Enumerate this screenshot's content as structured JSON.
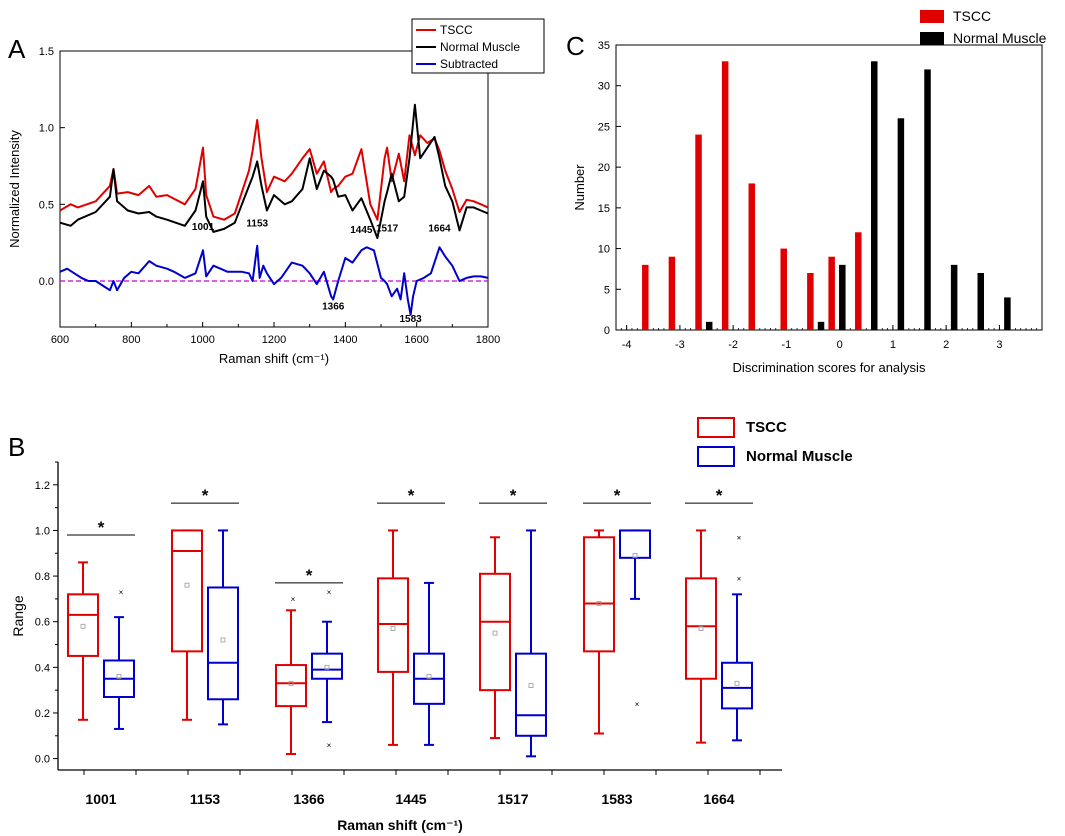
{
  "colors": {
    "tscc": "#e00000",
    "normal": "#000000",
    "subtracted": "#0000cc",
    "baseline": "#cc00cc",
    "box_normal": "#0000cc"
  },
  "chart_data": [
    {
      "panel": "A",
      "type": "line",
      "panel_label": "A",
      "xlabel": "Raman shift (cm⁻¹)",
      "ylabel": "Normalized Intensity",
      "xlim": [
        600,
        1800
      ],
      "ylim": [
        -0.3,
        1.5
      ],
      "xticks": [
        600,
        800,
        1000,
        1200,
        1400,
        1600,
        1800
      ],
      "yticks": [
        0.0,
        0.5,
        1.0,
        1.5
      ],
      "ytick_labels": [
        "0.0",
        "0.5",
        "1.0",
        "1.5"
      ],
      "legend": [
        "TSCC",
        "Normal Muscle",
        "Subtracted"
      ],
      "legend_position": "top-right",
      "annotations": [
        {
          "text": "1001",
          "x": 1001,
          "y": 0.36
        },
        {
          "text": "1153",
          "x": 1153,
          "y": 0.38
        },
        {
          "text": "1445",
          "x": 1445,
          "y": 0.34
        },
        {
          "text": "1517",
          "x": 1517,
          "y": 0.35
        },
        {
          "text": "1664",
          "x": 1664,
          "y": 0.35
        },
        {
          "text": "1366",
          "x": 1366,
          "y": -0.16
        },
        {
          "text": "1583",
          "x": 1583,
          "y": -0.24
        }
      ],
      "series": [
        {
          "name": "TSCC",
          "x": [
            600,
            630,
            650,
            700,
            740,
            750,
            760,
            790,
            820,
            850,
            870,
            900,
            950,
            980,
            1001,
            1010,
            1030,
            1060,
            1090,
            1110,
            1130,
            1140,
            1153,
            1165,
            1180,
            1200,
            1230,
            1250,
            1280,
            1300,
            1320,
            1340,
            1360,
            1366,
            1380,
            1400,
            1420,
            1445,
            1470,
            1490,
            1510,
            1517,
            1530,
            1550,
            1565,
            1580,
            1595,
            1610,
            1630,
            1650,
            1664,
            1680,
            1700,
            1720,
            1740,
            1760,
            1780,
            1800
          ],
          "y": [
            0.46,
            0.5,
            0.48,
            0.52,
            0.62,
            0.73,
            0.57,
            0.58,
            0.56,
            0.62,
            0.55,
            0.56,
            0.5,
            0.6,
            0.87,
            0.56,
            0.42,
            0.4,
            0.44,
            0.58,
            0.72,
            0.85,
            1.05,
            0.8,
            0.58,
            0.68,
            0.65,
            0.7,
            0.8,
            0.86,
            0.7,
            0.78,
            0.58,
            0.6,
            0.62,
            0.68,
            0.7,
            0.86,
            0.5,
            0.4,
            0.8,
            0.87,
            0.65,
            0.83,
            0.65,
            0.95,
            0.82,
            0.95,
            0.9,
            0.93,
            0.85,
            0.72,
            0.6,
            0.45,
            0.53,
            0.52,
            0.5,
            0.48
          ]
        },
        {
          "name": "Normal Muscle",
          "x": [
            600,
            630,
            650,
            700,
            740,
            750,
            760,
            790,
            820,
            850,
            870,
            900,
            950,
            980,
            1001,
            1010,
            1030,
            1060,
            1090,
            1110,
            1130,
            1140,
            1153,
            1165,
            1180,
            1200,
            1230,
            1250,
            1280,
            1300,
            1320,
            1340,
            1360,
            1366,
            1380,
            1400,
            1420,
            1445,
            1470,
            1490,
            1510,
            1517,
            1530,
            1550,
            1565,
            1580,
            1595,
            1610,
            1630,
            1650,
            1664,
            1680,
            1700,
            1720,
            1740,
            1760,
            1780,
            1800
          ],
          "y": [
            0.38,
            0.36,
            0.4,
            0.45,
            0.55,
            0.73,
            0.52,
            0.46,
            0.44,
            0.45,
            0.42,
            0.4,
            0.36,
            0.46,
            0.65,
            0.42,
            0.32,
            0.34,
            0.38,
            0.5,
            0.62,
            0.68,
            0.78,
            0.62,
            0.46,
            0.56,
            0.5,
            0.52,
            0.6,
            0.8,
            0.6,
            0.72,
            0.68,
            0.66,
            0.55,
            0.56,
            0.46,
            0.54,
            0.4,
            0.28,
            0.52,
            0.58,
            0.7,
            0.52,
            0.55,
            0.8,
            1.15,
            0.8,
            0.87,
            0.94,
            0.8,
            0.62,
            0.52,
            0.33,
            0.48,
            0.48,
            0.46,
            0.44
          ]
        },
        {
          "name": "Subtracted",
          "x": [
            600,
            620,
            640,
            660,
            680,
            700,
            720,
            740,
            750,
            760,
            780,
            800,
            820,
            850,
            870,
            900,
            920,
            950,
            980,
            1001,
            1010,
            1030,
            1050,
            1070,
            1090,
            1110,
            1130,
            1140,
            1153,
            1160,
            1170,
            1180,
            1200,
            1220,
            1250,
            1280,
            1300,
            1320,
            1340,
            1360,
            1366,
            1380,
            1400,
            1420,
            1445,
            1460,
            1480,
            1500,
            1510,
            1517,
            1530,
            1545,
            1555,
            1565,
            1575,
            1583,
            1590,
            1600,
            1620,
            1640,
            1664,
            1680,
            1700,
            1720,
            1740,
            1760,
            1780,
            1800
          ],
          "y": [
            0.06,
            0.08,
            0.05,
            0.02,
            0.0,
            0.0,
            -0.03,
            -0.06,
            0.0,
            -0.06,
            0.02,
            0.06,
            0.05,
            0.13,
            0.1,
            0.08,
            0.06,
            0.02,
            0.05,
            0.2,
            0.03,
            0.1,
            0.08,
            0.06,
            0.06,
            0.06,
            0.05,
            0.0,
            0.23,
            0.02,
            0.1,
            0.05,
            -0.02,
            0.02,
            0.12,
            0.1,
            0.05,
            -0.02,
            0.06,
            -0.1,
            -0.12,
            0.0,
            0.15,
            0.12,
            0.2,
            0.22,
            0.2,
            0.02,
            0.0,
            -0.02,
            -0.1,
            -0.05,
            -0.12,
            0.05,
            -0.12,
            -0.22,
            -0.1,
            0.0,
            0.02,
            0.05,
            0.22,
            0.16,
            0.1,
            0.0,
            0.02,
            0.03,
            0.03,
            0.02
          ]
        }
      ]
    },
    {
      "panel": "C",
      "type": "bar",
      "panel_label": "C",
      "xlabel": "Discrimination scores for analysis",
      "ylabel": "Number",
      "xlim": [
        -4.2,
        3.8
      ],
      "ylim": [
        0,
        35
      ],
      "xticks": [
        -4,
        -3,
        -2,
        -1,
        0,
        1,
        2,
        3
      ],
      "yticks": [
        0,
        5,
        10,
        15,
        20,
        25,
        30,
        35
      ],
      "legend": [
        "TSCC",
        "Normal Muscle"
      ],
      "legend_position": "top-right",
      "series": [
        {
          "name": "TSCC",
          "x": [
            -3.65,
            -3.15,
            -2.65,
            -2.15,
            -1.65,
            -1.05,
            -0.55,
            -0.15,
            0.35
          ],
          "values": [
            8,
            9,
            24,
            33,
            18,
            10,
            7,
            9,
            12
          ]
        },
        {
          "name": "Normal Muscle",
          "x": [
            -2.45,
            -0.35,
            0.05,
            0.65,
            1.15,
            1.65,
            2.15,
            2.65,
            3.15
          ],
          "values": [
            1,
            1,
            8,
            33,
            26,
            32,
            8,
            7,
            4
          ]
        }
      ]
    },
    {
      "panel": "B",
      "type": "box",
      "panel_label": "B",
      "xlabel": "Raman shift (cm⁻¹)",
      "ylabel": "Range",
      "ylim": [
        -0.05,
        1.3
      ],
      "yticks": [
        0.0,
        0.2,
        0.4,
        0.6,
        0.8,
        1.0,
        1.2
      ],
      "categories": [
        "1001",
        "1153",
        "1366",
        "1445",
        "1517",
        "1583",
        "1664"
      ],
      "legend": [
        "TSCC",
        "Normal  Muscle"
      ],
      "legend_position": "top-right",
      "significance_marker": "*",
      "series": [
        {
          "name": "TSCC",
          "boxes": [
            {
              "min": 0.17,
              "q1": 0.45,
              "median": 0.63,
              "q3": 0.72,
              "max": 0.86,
              "mean": 0.58,
              "outliers": []
            },
            {
              "min": 0.17,
              "q1": 0.47,
              "median": 0.91,
              "q3": 1.0,
              "max": 1.0,
              "mean": 0.76,
              "outliers": []
            },
            {
              "min": 0.02,
              "q1": 0.23,
              "median": 0.33,
              "q3": 0.41,
              "max": 0.65,
              "mean": 0.33,
              "outliers": [
                0.7
              ]
            },
            {
              "min": 0.06,
              "q1": 0.38,
              "median": 0.59,
              "q3": 0.79,
              "max": 1.0,
              "mean": 0.57,
              "outliers": []
            },
            {
              "min": 0.09,
              "q1": 0.3,
              "median": 0.6,
              "q3": 0.81,
              "max": 0.97,
              "mean": 0.55,
              "outliers": []
            },
            {
              "min": 0.11,
              "q1": 0.47,
              "median": 0.68,
              "q3": 0.97,
              "max": 1.0,
              "mean": 0.68,
              "outliers": []
            },
            {
              "min": 0.07,
              "q1": 0.35,
              "median": 0.58,
              "q3": 0.79,
              "max": 1.0,
              "mean": 0.57,
              "outliers": []
            }
          ]
        },
        {
          "name": "Normal Muscle",
          "boxes": [
            {
              "min": 0.13,
              "q1": 0.27,
              "median": 0.35,
              "q3": 0.43,
              "max": 0.62,
              "mean": 0.36,
              "outliers": [
                0.73
              ]
            },
            {
              "min": 0.15,
              "q1": 0.26,
              "median": 0.42,
              "q3": 0.75,
              "max": 1.0,
              "mean": 0.52,
              "outliers": []
            },
            {
              "min": 0.16,
              "q1": 0.35,
              "median": 0.39,
              "q3": 0.46,
              "max": 0.6,
              "mean": 0.4,
              "outliers": [
                0.73,
                0.06
              ]
            },
            {
              "min": 0.06,
              "q1": 0.24,
              "median": 0.35,
              "q3": 0.46,
              "max": 0.77,
              "mean": 0.36,
              "outliers": []
            },
            {
              "min": 0.01,
              "q1": 0.1,
              "median": 0.19,
              "q3": 0.46,
              "max": 1.0,
              "mean": 0.32,
              "outliers": []
            },
            {
              "min": 0.7,
              "q1": 0.88,
              "median": 1.0,
              "q3": 1.0,
              "max": 1.0,
              "mean": 0.89,
              "outliers": [
                0.24
              ]
            },
            {
              "min": 0.08,
              "q1": 0.22,
              "median": 0.31,
              "q3": 0.42,
              "max": 0.72,
              "mean": 0.33,
              "outliers": [
                0.79,
                0.97
              ]
            }
          ]
        }
      ]
    }
  ]
}
